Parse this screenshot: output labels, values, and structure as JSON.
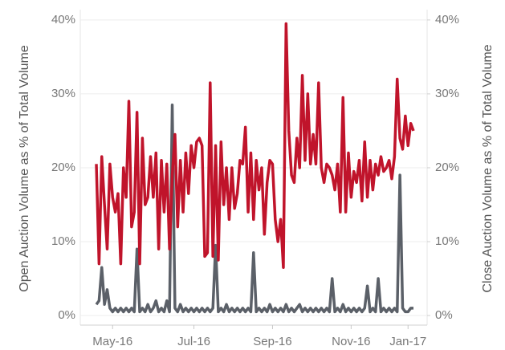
{
  "chart_data": {
    "type": "line",
    "y_label": "Open Auction Volume as % of Total Volume",
    "y2_label": "Close Auction Volume as % of Total Volume",
    "categories": [
      null,
      null,
      null,
      null,
      null,
      null,
      "May-16",
      null,
      null,
      null,
      null,
      null,
      null,
      null,
      null,
      null,
      null,
      null,
      null,
      null,
      null,
      null,
      null,
      null,
      null,
      null,
      null,
      null,
      null,
      null,
      null,
      null,
      null,
      null,
      null,
      null,
      "Jul-16",
      null,
      null,
      null,
      null,
      null,
      null,
      null,
      null,
      null,
      null,
      null,
      null,
      null,
      null,
      null,
      null,
      null,
      null,
      null,
      null,
      null,
      null,
      null,
      null,
      null,
      null,
      null,
      null,
      "Sep-16",
      null,
      null,
      null,
      null,
      null,
      null,
      null,
      null,
      null,
      null,
      null,
      null,
      null,
      null,
      null,
      null,
      null,
      null,
      null,
      null,
      null,
      null,
      null,
      null,
      null,
      null,
      null,
      null,
      "Nov-16",
      null,
      null,
      null,
      null,
      null,
      null,
      null,
      null,
      null,
      null,
      null,
      null,
      null,
      null,
      null,
      null,
      null,
      null,
      null,
      null,
      "Jan-17",
      null,
      null
    ],
    "series": [
      {
        "color": "#5b6068",
        "values": [
          1.5,
          2,
          6.5,
          1.5,
          3.5,
          1,
          0.5,
          1,
          0.5,
          1,
          0.5,
          1,
          0.5,
          1,
          0.5,
          9,
          0.5,
          1,
          0.5,
          1.5,
          0.5,
          1,
          2,
          0.5,
          1,
          0.5,
          2,
          0.5,
          28.5,
          1,
          0.5,
          1.5,
          0.5,
          1,
          0.5,
          1,
          0.5,
          1,
          0.5,
          1,
          0.5,
          1,
          0.5,
          1,
          9.5,
          0.5,
          1,
          0.5,
          1.5,
          0.5,
          1,
          0.5,
          1,
          0.5,
          1,
          0.5,
          1,
          0.5,
          8.5,
          0.5,
          1,
          0.5,
          1,
          0.5,
          1.5,
          0.5,
          1,
          0.5,
          1,
          0.5,
          1.5,
          0.5,
          1,
          0.5,
          1,
          1.5,
          0.5,
          1,
          0.5,
          1,
          0.5,
          1,
          0.5,
          1,
          0.5,
          1,
          0.5,
          5,
          0.5,
          1,
          0.5,
          1.5,
          0.5,
          1,
          0.5,
          1,
          0.5,
          1,
          0.5,
          1,
          4,
          0.5,
          1,
          0.5,
          5,
          0.5,
          1,
          0.5,
          1,
          0.5,
          1,
          0.5,
          19,
          1,
          0.5,
          0.5,
          1,
          1
        ]
      },
      {
        "color": "#c0142b",
        "axis": "y2",
        "values": [
          20.5,
          7,
          21.5,
          15,
          9,
          20.5,
          16,
          14,
          16.5,
          7,
          20,
          16,
          29,
          12,
          14,
          27.5,
          7,
          24,
          15,
          16,
          21.5,
          16,
          22,
          9,
          21,
          14,
          20.5,
          9,
          19,
          24.5,
          12,
          21,
          14,
          22,
          16.5,
          23,
          20,
          23.5,
          24,
          23,
          8,
          8.5,
          31.5,
          8,
          23,
          7.5,
          23.5,
          15,
          20,
          13,
          20,
          14.5,
          16.5,
          21,
          20.5,
          25.5,
          14,
          22,
          13,
          21,
          17,
          20,
          11,
          18,
          21,
          20.5,
          13,
          10,
          13,
          6.5,
          39.5,
          25,
          19,
          18,
          24,
          20,
          32.5,
          21,
          30,
          20.5,
          24.5,
          20.5,
          31.5,
          20,
          18,
          20.5,
          20,
          19,
          17,
          20.5,
          14,
          29.5,
          14,
          22,
          16,
          19.5,
          18,
          21,
          15.5,
          23.5,
          16,
          21,
          17,
          20.5,
          19,
          21.5,
          19.5,
          20,
          21,
          18.5,
          21.5,
          32,
          24,
          22.5,
          27,
          23,
          26,
          25
        ]
      }
    ],
    "ylim": [
      -1.3,
      41.4
    ],
    "yticks": [
      {
        "value": 0,
        "label": "0%"
      },
      {
        "value": 10,
        "label": "10%"
      },
      {
        "value": 20,
        "label": "20%"
      },
      {
        "value": 30,
        "label": "30%"
      },
      {
        "value": 40,
        "label": "40%"
      }
    ],
    "y2lim": [
      -1.3,
      41.4
    ],
    "y2ticks": [
      {
        "value": 0,
        "label": "0%"
      },
      {
        "value": 10,
        "label": "10%"
      },
      {
        "value": 20,
        "label": "20%"
      },
      {
        "value": 30,
        "label": "30%"
      },
      {
        "value": 40,
        "label": "40%"
      }
    ],
    "grid": true
  }
}
